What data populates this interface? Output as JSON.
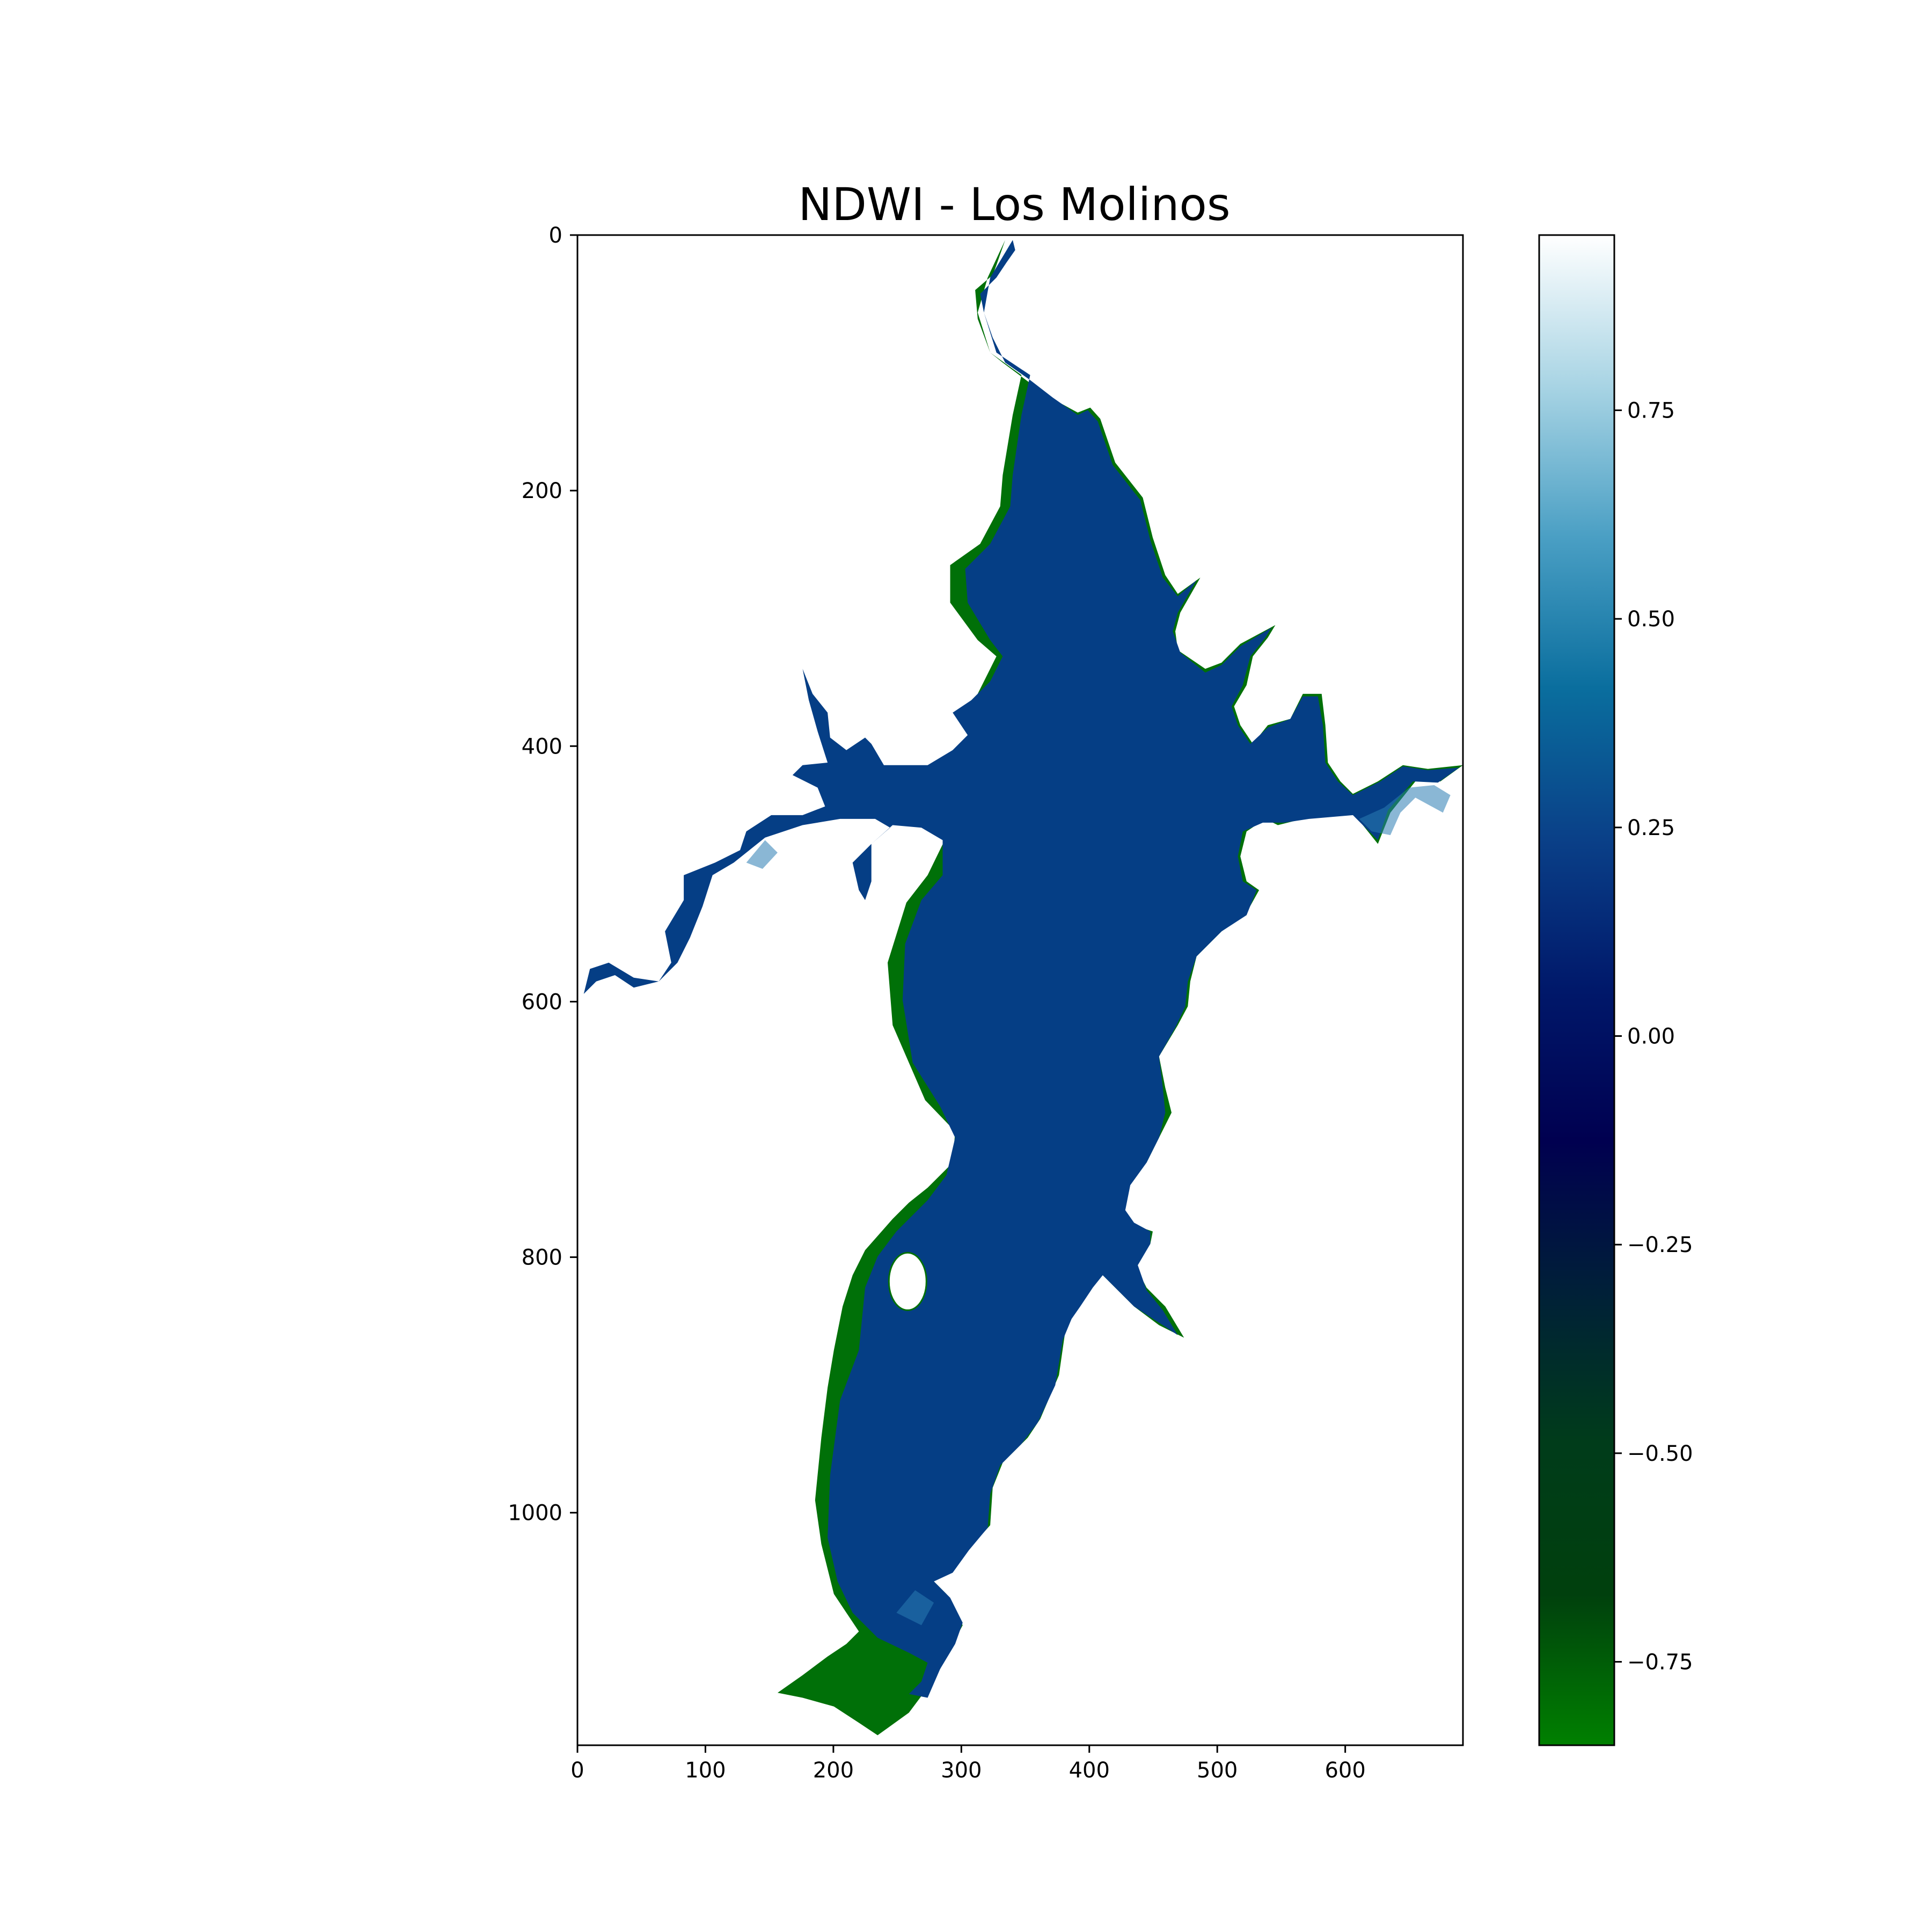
{
  "chart_data": {
    "type": "heatmap",
    "title": "NDWI - Los Molinos",
    "xlabel": "",
    "ylabel": "",
    "xlim": [
      0,
      692
    ],
    "ylim": [
      1182,
      0
    ],
    "x_ticks": [
      0,
      100,
      200,
      300,
      400,
      500,
      600
    ],
    "y_ticks": [
      0,
      200,
      400,
      600,
      800,
      1000
    ],
    "colorbar": {
      "colormap": "ocean",
      "range": [
        -0.85,
        0.96
      ],
      "ticks": [
        0.75,
        0.5,
        0.25,
        0.0,
        -0.25,
        -0.5,
        -0.75
      ],
      "tick_labels": [
        "0.75",
        "0.50",
        "0.25",
        "0.00",
        "−0.25",
        "−0.50",
        "−0.75"
      ]
    },
    "water_value": 0.05,
    "shore_value": -0.8,
    "nodata_color": "#ffffff",
    "grid": false
  }
}
